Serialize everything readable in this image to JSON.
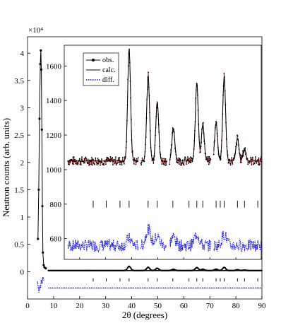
{
  "chart_data": [
    {
      "type": "line",
      "panel": "main",
      "xlabel": "2θ (degrees)",
      "ylabel": "Neutron counts (arb. units)",
      "y_multiplier": "×10⁴",
      "xlim": [
        0,
        90
      ],
      "ylim": [
        -0.5,
        4.3
      ],
      "x_ticks": [
        0,
        10,
        20,
        30,
        40,
        50,
        60,
        70,
        80,
        90
      ],
      "y_ticks": [
        0,
        0.5,
        1,
        1.5,
        2,
        2.5,
        3,
        3.5,
        4
      ],
      "series": [
        {
          "name": "obs.",
          "x": [
            4.0,
            4.3,
            4.6,
            4.9,
            5.1,
            5.3,
            5.5,
            5.7,
            5.9,
            6.2,
            6.5,
            7.0
          ],
          "y": [
            0.6,
            1.5,
            2.8,
            3.8,
            4.05,
            3.7,
            2.6,
            1.2,
            0.35,
            0.12,
            0.08,
            0.06
          ]
        },
        {
          "name": "calc.",
          "x": [
            4.0,
            4.3,
            4.6,
            4.9,
            5.1,
            5.3,
            5.5,
            5.7,
            5.9,
            6.2,
            6.5,
            7.0
          ],
          "y": [
            0.6,
            1.5,
            2.8,
            3.8,
            4.05,
            3.7,
            2.6,
            1.2,
            0.35,
            0.12,
            0.08,
            0.06
          ]
        },
        {
          "name": "diff.",
          "x": [
            3.8,
            4.1,
            4.4,
            4.7,
            5.0,
            5.3,
            5.6,
            5.9,
            6.2
          ],
          "y": [
            -0.18,
            -0.28,
            -0.38,
            -0.25,
            -0.3,
            -0.15,
            -0.22,
            -0.1,
            -0.16
          ]
        }
      ]
    },
    {
      "type": "line",
      "panel": "inset",
      "xlim": [
        15,
        90
      ],
      "ylim": [
        480,
        1720
      ],
      "y_ticks": [
        600,
        800,
        1000,
        1200,
        1400,
        1600
      ],
      "x_ticks": [
        20,
        30,
        40,
        50,
        60,
        70,
        80,
        90
      ],
      "legend": [
        "obs.",
        "calc.",
        "diff."
      ],
      "legend_position": "top-left",
      "baseline": 1050,
      "peaks": [
        {
          "x": 39.0,
          "y": 1700
        },
        {
          "x": 46.3,
          "y": 1545
        },
        {
          "x": 49.8,
          "y": 1395
        },
        {
          "x": 56.0,
          "y": 1240
        },
        {
          "x": 65.0,
          "y": 1505
        },
        {
          "x": 67.3,
          "y": 1260
        },
        {
          "x": 72.4,
          "y": 1270
        },
        {
          "x": 75.5,
          "y": 1535
        },
        {
          "x": 80.6,
          "y": 1180
        },
        {
          "x": 83.3,
          "y": 1120
        }
      ],
      "bragg_positions": [
        25.2,
        30.2,
        35.5,
        39.0,
        46.3,
        49.8,
        55.8,
        62.0,
        65.0,
        67.3,
        72.4,
        74.0,
        75.5,
        80.6,
        83.3,
        88.4
      ],
      "diff_center": 560,
      "diff_peaks": [
        {
          "x": 39.0,
          "y": 600
        },
        {
          "x": 46.3,
          "y": 660
        },
        {
          "x": 49.8,
          "y": 615
        },
        {
          "x": 56.0,
          "y": 610
        },
        {
          "x": 65.0,
          "y": 630
        },
        {
          "x": 75.5,
          "y": 625
        }
      ]
    }
  ],
  "axis_text": {
    "xlabel": "2θ (degrees)",
    "ylabel": "Neutron counts (arb. units)",
    "y_multiplier": "×10⁴"
  },
  "legend_items": [
    "obs.",
    "calc.",
    "diff."
  ],
  "colors": {
    "obs": "#000000",
    "obs_fill": "#8b1a1a",
    "calc": "#000000",
    "diff": "#1010e0",
    "bragg": "#000000"
  }
}
